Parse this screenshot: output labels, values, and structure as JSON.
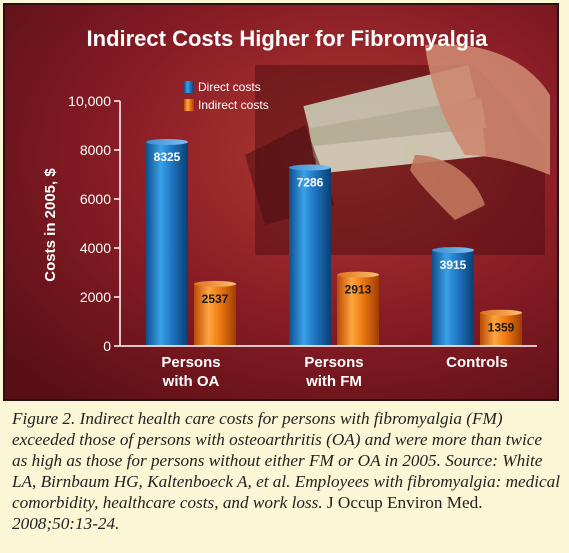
{
  "chart_data": {
    "type": "bar",
    "title": "Indirect Costs Higher for Fibromyalgia",
    "ylabel": "Costs in 2005, $",
    "xlabel": "",
    "categories": [
      [
        "Persons",
        "with OA"
      ],
      [
        "Persons",
        "with FM"
      ],
      [
        "Controls"
      ]
    ],
    "series": [
      {
        "name": "Direct costs",
        "values": [
          8325,
          7286,
          3915
        ]
      },
      {
        "name": "Indirect costs",
        "values": [
          2537,
          2913,
          1359
        ]
      }
    ],
    "ylim": [
      0,
      10000
    ],
    "yticks": [
      0,
      2000,
      4000,
      6000,
      8000,
      10000
    ],
    "ytick_labels": [
      "0",
      "2000",
      "4000",
      "6000",
      "8000",
      "10,000"
    ],
    "legend_position": "top-left",
    "grid": false,
    "colors": {
      "direct": "#1f77c4",
      "indirect": "#ef7b12",
      "background": "#8a1d26"
    }
  },
  "caption": {
    "part1": "Figure 2. Indirect health care costs for persons with fibromyalgia (FM) exceeded those of persons with osteoarthritis (OA) and were more than twice as high as those for persons without either FM or OA in 2005. Source: White LA, Birnbaum HG, Kaltenboeck A, et al. Employees with fibromyalgia: medical comorbidity, healthcare costs, and work loss.",
    "journal": "J Occup Environ Med.",
    "part2": "2008;50:13-24."
  }
}
